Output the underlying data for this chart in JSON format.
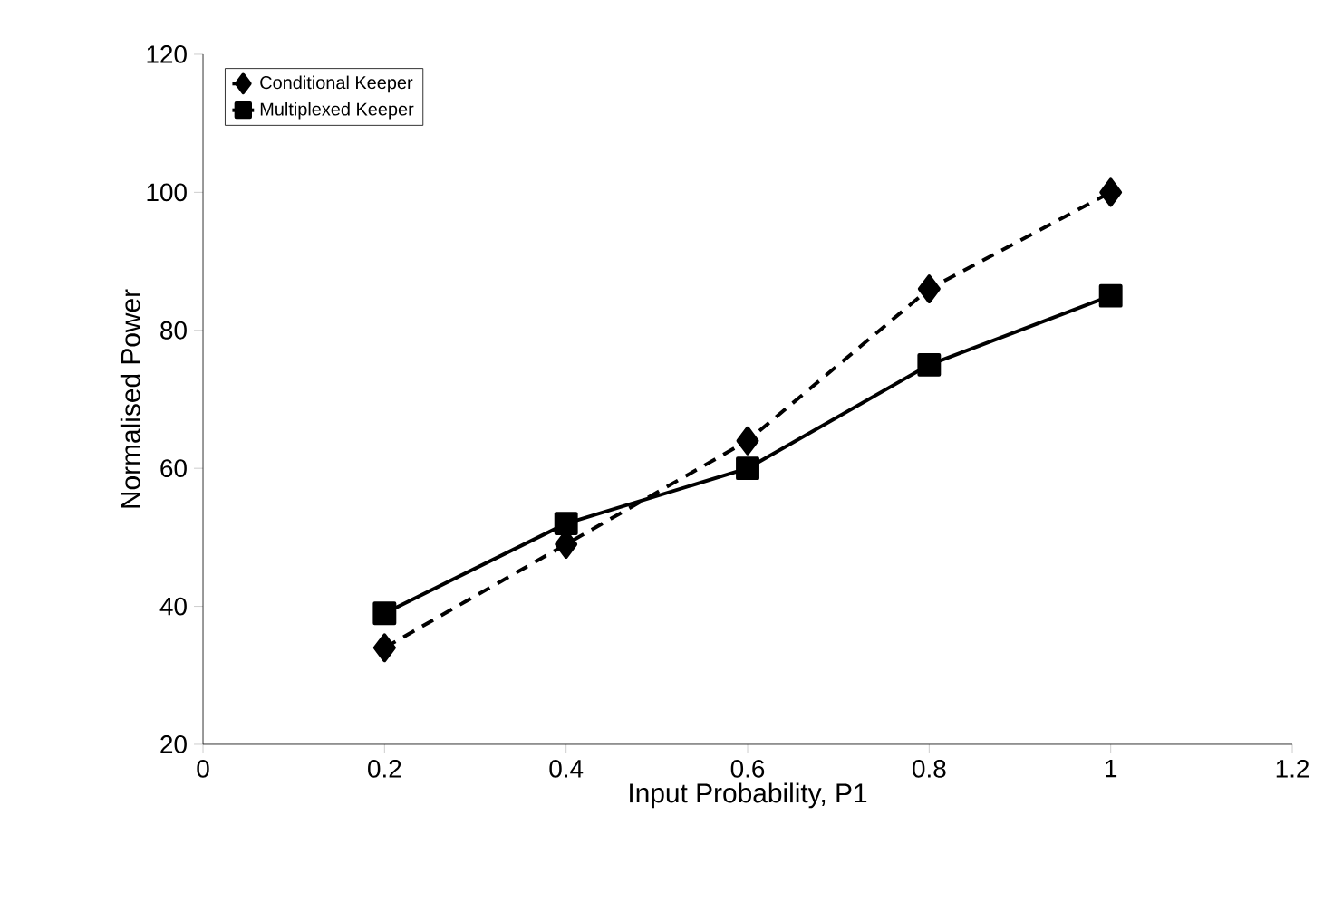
{
  "chart_data": {
    "type": "line",
    "xlabel": "Input Probability, P1",
    "ylabel": "Normalised Power",
    "x": [
      0.2,
      0.4,
      0.6,
      0.8,
      1
    ],
    "series": [
      {
        "name": "Conditional Keeper",
        "color": "#000000",
        "values": [
          34,
          49,
          64,
          86,
          100
        ],
        "marker": "diamond",
        "line_style": "dashed"
      },
      {
        "name": "Multiplexed Keeper",
        "color": "#000000",
        "values": [
          39,
          52,
          60,
          75,
          85
        ],
        "marker": "square",
        "line_style": "solid"
      }
    ],
    "xlim": [
      0,
      1.2
    ],
    "xticks": [
      0,
      0.2,
      0.4,
      0.6,
      0.8,
      1,
      1.2
    ],
    "ylim": [
      20,
      120
    ],
    "yticks": [
      20,
      40,
      60,
      80,
      100,
      120
    ],
    "legend": "top left",
    "grid": false
  }
}
